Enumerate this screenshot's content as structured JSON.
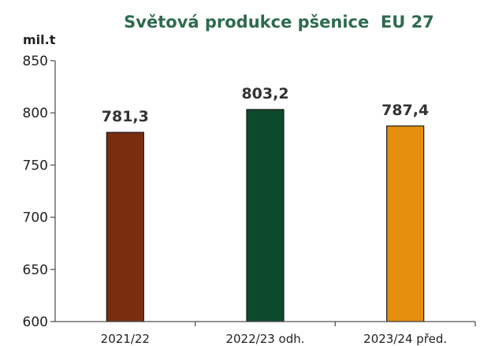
{
  "chart_data": {
    "type": "bar",
    "title": "Světová produkce pšenice  EU 27",
    "ylabel": "mil.t",
    "xlabel": "",
    "categories": [
      "2021/22",
      "2022/23 odh.",
      "2023/24 před."
    ],
    "values": [
      781.3,
      803.2,
      787.4
    ],
    "data_labels": [
      "781,3",
      "803,2",
      "787,4"
    ],
    "bar_colors": [
      "#7a2e10",
      "#0d4a2c",
      "#e68e0e"
    ],
    "ylim": [
      600,
      850
    ],
    "yticks": [
      600,
      650,
      700,
      750,
      800,
      850
    ],
    "grid": false,
    "legend": "none"
  }
}
